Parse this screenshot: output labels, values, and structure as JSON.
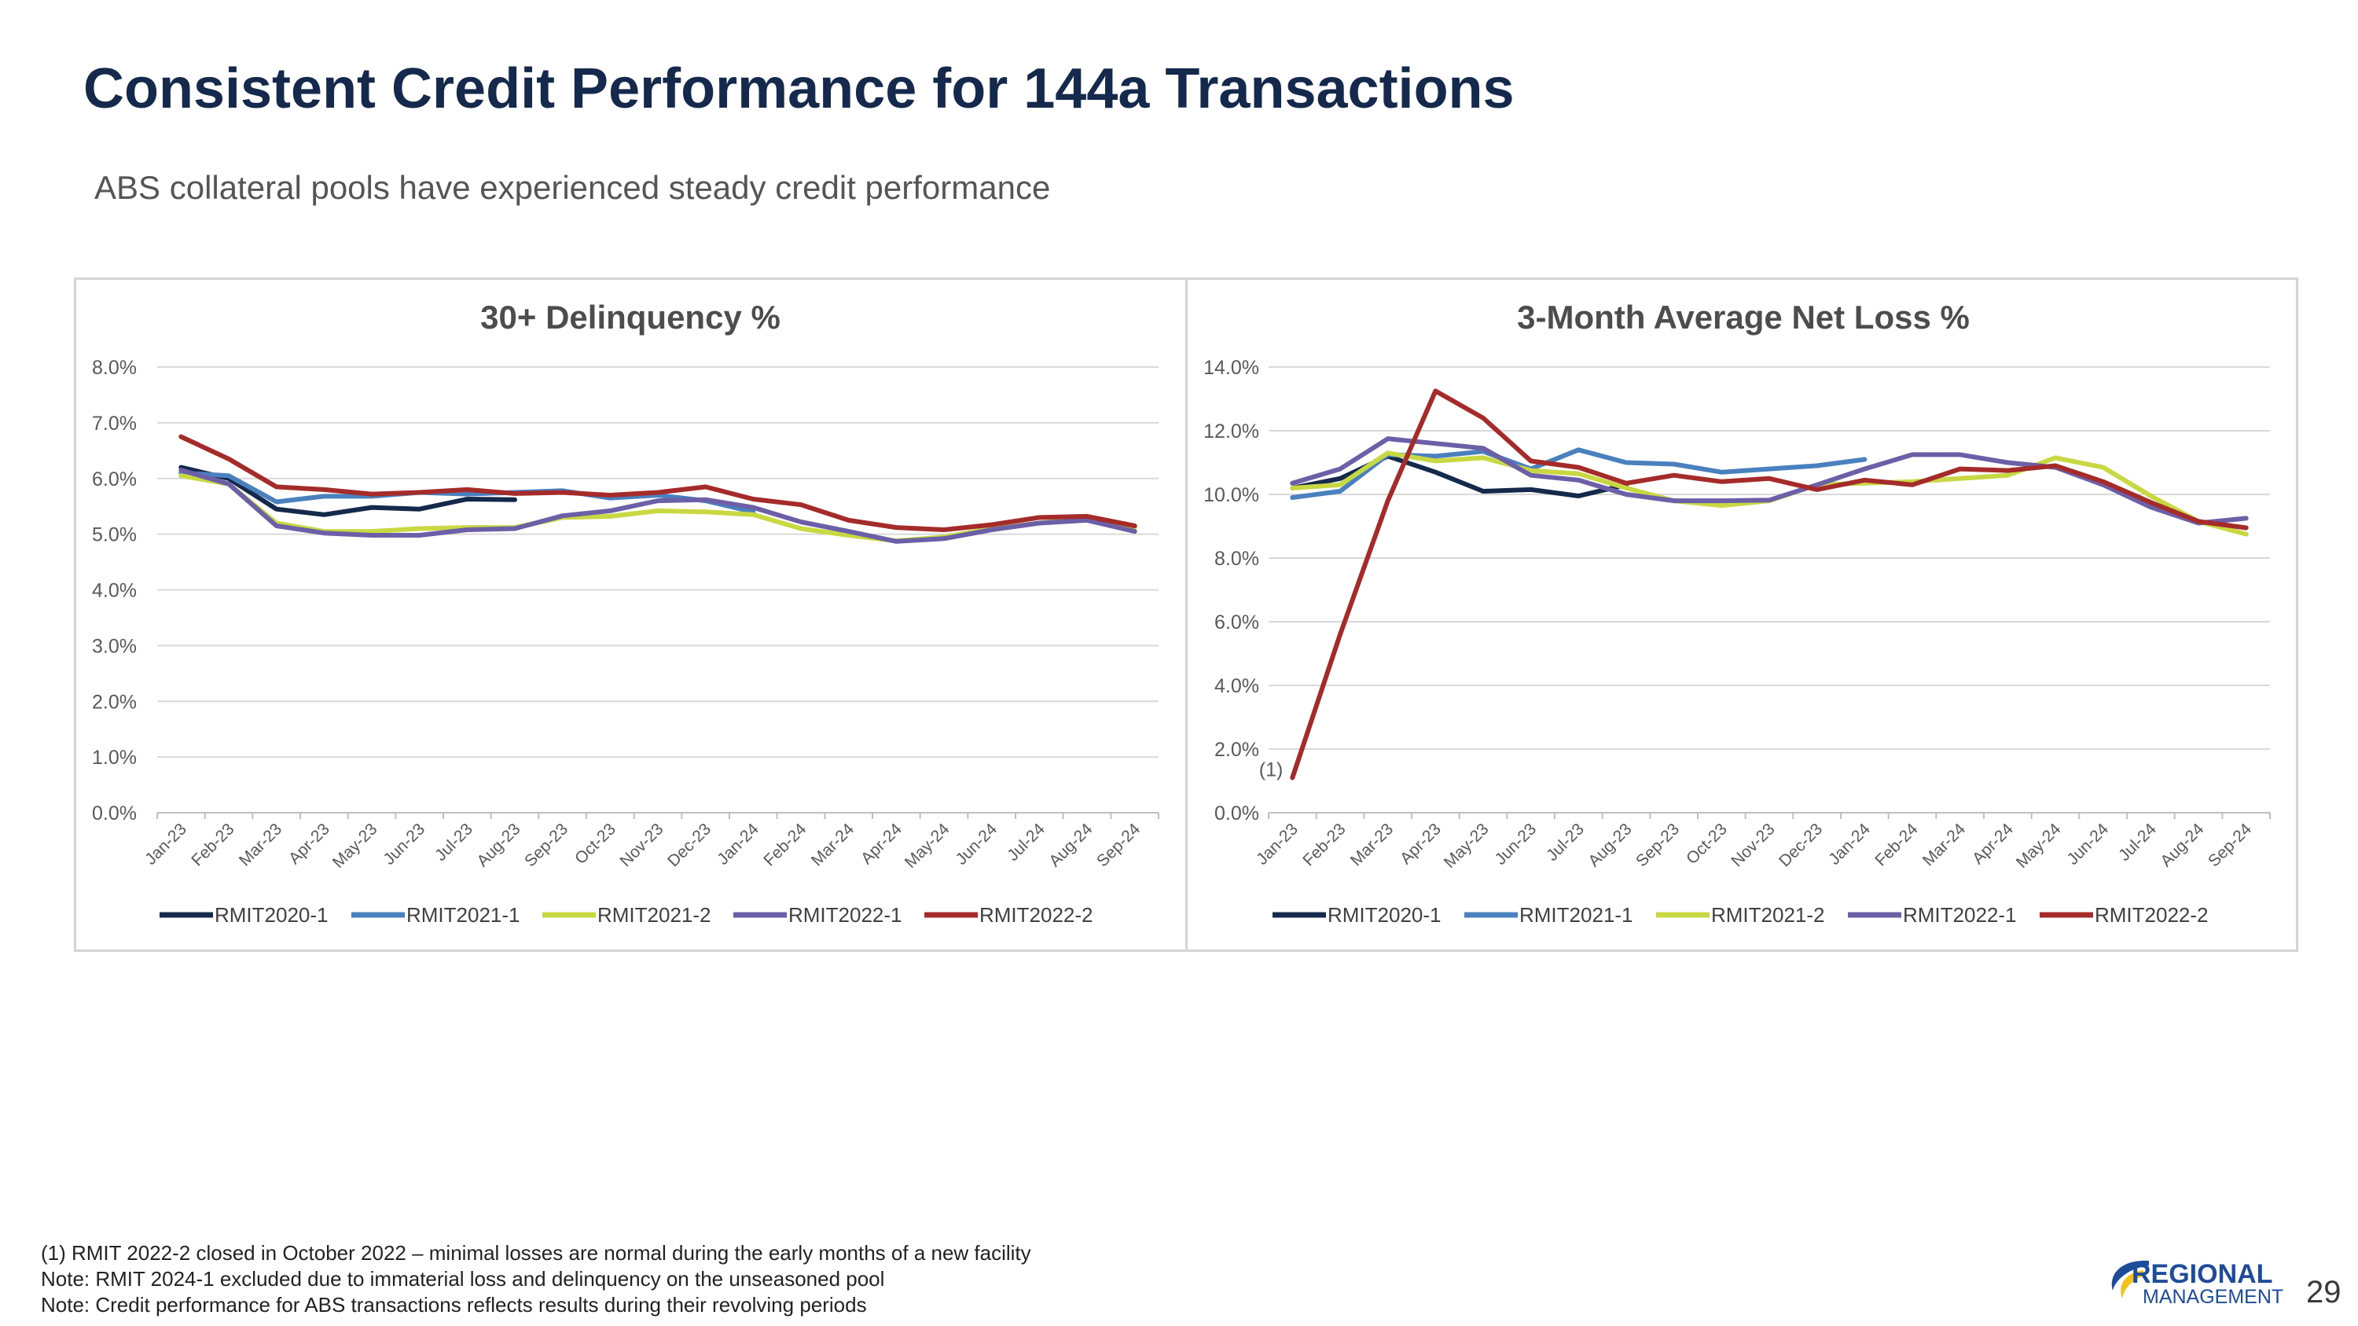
{
  "page": {
    "title": "Consistent Credit Performance for 144a Transactions",
    "subtitle": "ABS collateral pools have experienced steady credit performance",
    "page_number": "29",
    "logo_top": "REGIONAL",
    "logo_bottom": "MANAGEMENT",
    "footnotes": [
      "(1) RMIT 2022-2 closed in October 2022 – minimal losses are normal during the early months of a new facility",
      "Note:  RMIT 2024-1 excluded due to immaterial loss and delinquency on the unseasoned pool",
      "Note:  Credit performance for ABS transactions reflects results during their revolving periods"
    ]
  },
  "colors": {
    "RMIT2020-1": "#14294b",
    "RMIT2021-1": "#4a80bd",
    "RMIT2021-2": "#c8d843",
    "RMIT2022-1": "#6c5fa7",
    "RMIT2022-2": "#a52a2a",
    "title": "#14294b",
    "grid": "#d9d9d9",
    "logo_blue": "#1e4b9a",
    "logo_yellow": "#f3c21a"
  },
  "chart_data": [
    {
      "type": "line",
      "title": "30+ Delinquency %",
      "xlabel": "",
      "ylabel": "",
      "ylim": [
        0,
        8
      ],
      "yticks": [
        "0.0%",
        "1.0%",
        "2.0%",
        "3.0%",
        "4.0%",
        "5.0%",
        "6.0%",
        "7.0%",
        "8.0%"
      ],
      "categories": [
        "Jan-23",
        "Feb-23",
        "Mar-23",
        "Apr-23",
        "May-23",
        "Jun-23",
        "Jul-23",
        "Aug-23",
        "Sep-23",
        "Oct-23",
        "Nov-23",
        "Dec-23",
        "Jan-24",
        "Feb-24",
        "Mar-24",
        "Apr-24",
        "May-24",
        "Jun-24",
        "Jul-24",
        "Aug-24",
        "Sep-24"
      ],
      "legend_position": "bottom",
      "series": [
        {
          "name": "RMIT2020-1",
          "values": [
            6.2,
            6.0,
            5.45,
            5.35,
            5.48,
            5.45,
            5.63,
            5.62,
            null,
            null,
            null,
            null,
            null,
            null,
            null,
            null,
            null,
            null,
            null,
            null,
            null
          ]
        },
        {
          "name": "RMIT2021-1",
          "values": [
            6.1,
            6.05,
            5.58,
            5.68,
            5.68,
            5.75,
            5.72,
            5.75,
            5.78,
            5.65,
            5.7,
            5.6,
            5.4,
            null,
            null,
            null,
            null,
            null,
            null,
            null,
            null
          ]
        },
        {
          "name": "RMIT2021-2",
          "values": [
            6.05,
            5.9,
            5.2,
            5.05,
            5.05,
            5.1,
            5.12,
            5.12,
            5.3,
            5.32,
            5.42,
            5.4,
            5.35,
            5.1,
            4.98,
            4.88,
            4.95,
            5.1,
            5.2,
            5.28,
            5.12
          ]
        },
        {
          "name": "RMIT2022-1",
          "values": [
            6.15,
            5.9,
            5.15,
            5.02,
            4.98,
            4.98,
            5.08,
            5.1,
            5.33,
            5.42,
            5.6,
            5.62,
            5.48,
            5.22,
            5.05,
            4.87,
            4.92,
            5.08,
            5.2,
            5.25,
            5.05
          ]
        },
        {
          "name": "RMIT2022-2",
          "values": [
            6.75,
            6.35,
            5.85,
            5.8,
            5.72,
            5.75,
            5.8,
            5.73,
            5.75,
            5.7,
            5.75,
            5.85,
            5.63,
            5.53,
            5.25,
            5.12,
            5.08,
            5.17,
            5.3,
            5.32,
            5.15
          ]
        }
      ]
    },
    {
      "type": "line",
      "title": "3-Month Average Net Loss %",
      "xlabel": "",
      "ylabel": "",
      "ylim": [
        0,
        14
      ],
      "yticks": [
        "0.0%",
        "2.0%",
        "4.0%",
        "6.0%",
        "8.0%",
        "10.0%",
        "12.0%",
        "14.0%"
      ],
      "categories": [
        "Jan-23",
        "Feb-23",
        "Mar-23",
        "Apr-23",
        "May-23",
        "Jun-23",
        "Jul-23",
        "Aug-23",
        "Sep-23",
        "Oct-23",
        "Nov-23",
        "Dec-23",
        "Jan-24",
        "Feb-24",
        "Mar-24",
        "Apr-24",
        "May-24",
        "Jun-24",
        "Jul-24",
        "Aug-24",
        "Sep-24"
      ],
      "annotation": "(1)",
      "legend_position": "bottom",
      "series": [
        {
          "name": "RMIT2020-1",
          "values": [
            10.2,
            10.5,
            11.2,
            10.7,
            10.1,
            10.15,
            9.95,
            10.3,
            null,
            null,
            null,
            null,
            null,
            null,
            null,
            null,
            null,
            null,
            null,
            null,
            null
          ]
        },
        {
          "name": "RMIT2021-1",
          "values": [
            9.9,
            10.1,
            11.25,
            11.2,
            11.35,
            10.8,
            11.4,
            11.0,
            10.95,
            10.7,
            10.8,
            10.9,
            11.1,
            null,
            null,
            null,
            null,
            null,
            null,
            null,
            null
          ]
        },
        {
          "name": "RMIT2021-2",
          "values": [
            10.2,
            10.3,
            11.3,
            11.05,
            11.15,
            10.75,
            10.65,
            10.2,
            9.8,
            9.65,
            9.8,
            10.3,
            10.35,
            10.4,
            10.5,
            10.6,
            11.15,
            10.85,
            9.95,
            9.15,
            8.75
          ]
        },
        {
          "name": "RMIT2022-1",
          "values": [
            10.35,
            10.8,
            11.75,
            11.6,
            11.45,
            10.6,
            10.45,
            10.0,
            9.8,
            9.8,
            9.82,
            10.3,
            10.8,
            11.25,
            11.25,
            11.0,
            10.85,
            10.3,
            9.6,
            9.1,
            9.25
          ]
        },
        {
          "name": "RMIT2022-2",
          "values": [
            1.1,
            5.6,
            9.8,
            13.25,
            12.4,
            11.05,
            10.85,
            10.35,
            10.6,
            10.4,
            10.5,
            10.15,
            10.45,
            10.3,
            10.8,
            10.75,
            10.9,
            10.4,
            9.75,
            9.15,
            8.95
          ]
        }
      ]
    }
  ]
}
